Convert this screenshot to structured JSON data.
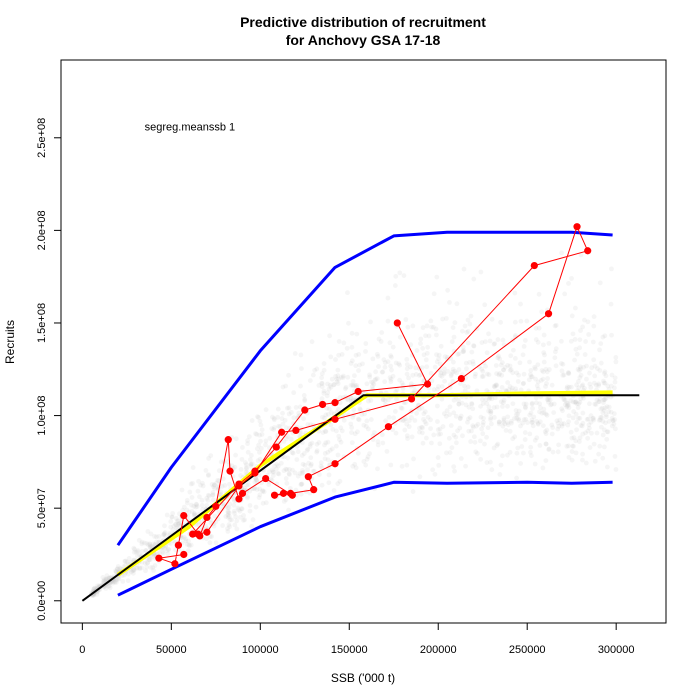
{
  "chart_data": {
    "type": "scatter",
    "title": [
      "Predictive distribution of recruitment",
      "for Anchovy GSA 17-18"
    ],
    "xlabel": "SSB ('000 t)",
    "ylabel": "Recruits",
    "xlim": [
      -12000,
      328000
    ],
    "ylim": [
      -12000000,
      292000000
    ],
    "x_ticks": [
      0,
      50000,
      100000,
      150000,
      200000,
      250000,
      300000
    ],
    "x_tick_labels": [
      "0",
      "50000",
      "100000",
      "150000",
      "200000",
      "250000",
      "300000"
    ],
    "y_ticks": [
      0,
      50000000,
      100000000,
      150000000,
      200000000,
      250000000
    ],
    "y_tick_labels": [
      "0.0e+00",
      "5.0e+07",
      "1.0e+08",
      "1.5e+08",
      "2.0e+08",
      "2.5e+08"
    ],
    "annotation": {
      "text": "segreg.meanssb 1",
      "x": 35000,
      "y": 254000000
    },
    "colors": {
      "upper_lower": "#0000ff",
      "median": "#ffff00",
      "fit": "#000000",
      "observed": "#ff0000",
      "cloud": "#c8c8c8"
    },
    "cloud_density": "dense grey predictive sample cloud",
    "series": [
      {
        "role": "upper-quantile",
        "x": [
          20000,
          50000,
          100000,
          142000,
          175000,
          205000,
          250000,
          275000,
          298000
        ],
        "y": [
          30000000,
          72000000,
          135000000,
          180000000,
          197000000,
          199000000,
          199000000,
          199000000,
          197500000
        ]
      },
      {
        "role": "lower-quantile",
        "x": [
          20000,
          50000,
          100000,
          142000,
          175000,
          205000,
          250000,
          275000,
          298000
        ],
        "y": [
          3000000,
          17000000,
          40000000,
          56000000,
          64000000,
          63500000,
          64000000,
          63500000,
          64000000
        ]
      },
      {
        "role": "median",
        "x": [
          20000,
          60000,
          100000,
          140000,
          160000,
          200000,
          250000,
          298000
        ],
        "y": [
          14000000,
          40000000,
          73000000,
          98000000,
          111000000,
          111000000,
          112000000,
          112500000
        ]
      },
      {
        "role": "fit",
        "x": [
          0,
          158000,
          313000
        ],
        "y": [
          0,
          111000000,
          111000000
        ]
      },
      {
        "role": "observed",
        "x": [
          177000,
          194000,
          155000,
          142000,
          135000,
          125000,
          109000,
          97000,
          88000,
          62000,
          66000,
          70000,
          75000,
          82000,
          83000,
          88000,
          90000,
          103000,
          118000,
          113000,
          108000,
          117000,
          130000,
          127000,
          142000,
          172000,
          213000,
          262000,
          278000,
          284000,
          254000,
          185000,
          142000,
          120000,
          112000,
          97000,
          88000,
          70000,
          65000,
          57000,
          54000,
          52000,
          43000,
          57000
        ],
        "y": [
          150000000,
          117000000,
          113000000,
          107000000,
          106000000,
          103000000,
          83000000,
          70000000,
          63000000,
          36000000,
          35000000,
          45000000,
          51000000,
          87000000,
          70000000,
          55000000,
          58000000,
          66000000,
          57000000,
          58000000,
          57000000,
          58000000,
          60000000,
          67000000,
          74000000,
          94000000,
          120000000,
          155000000,
          202000000,
          189000000,
          181000000,
          109000000,
          98000000,
          92000000,
          91000000,
          69000000,
          62000000,
          37000000,
          36000000,
          46000000,
          30000000,
          20000000,
          23000000,
          25000000
        ]
      }
    ]
  }
}
